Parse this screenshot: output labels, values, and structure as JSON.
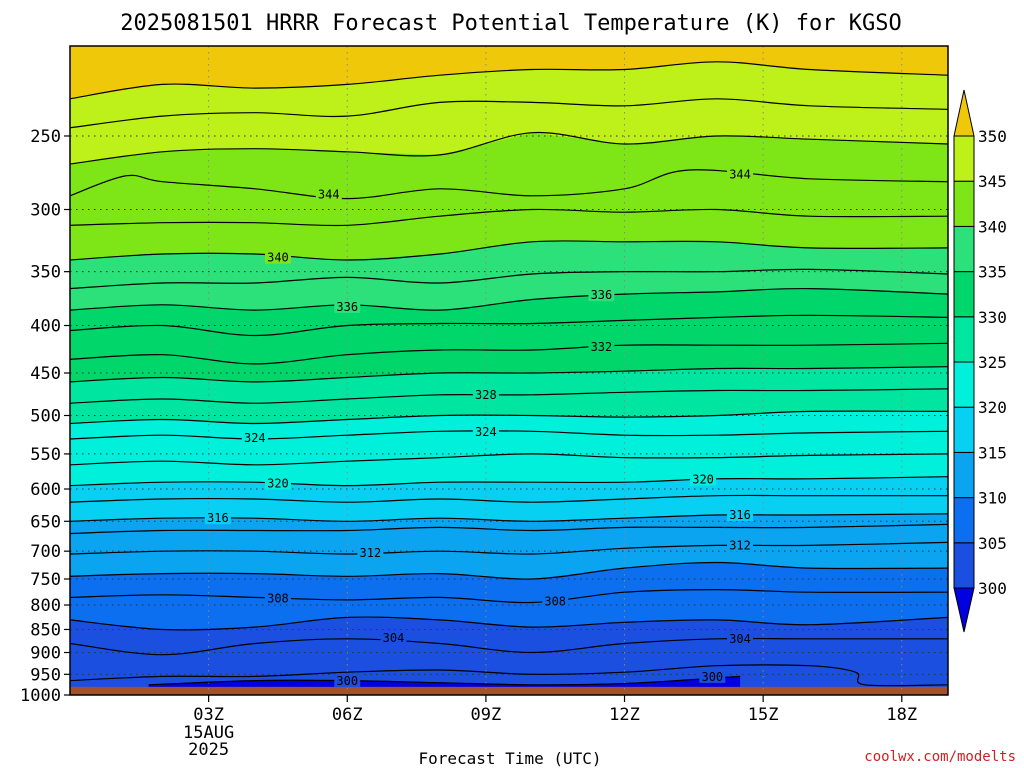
{
  "title": "2025081501 HRRR Forecast Potential Temperature (K) for KGSO",
  "xlabel": "Forecast Time (UTC)",
  "watermark": "coolwx.com/modelts",
  "chart_data": {
    "type": "contour",
    "title": "2025081501 HRRR Forecast Potential Temperature (K) for KGSO",
    "xlabel": "Forecast Time (UTC)",
    "ylabel": "",
    "x_ticks": [
      {
        "label": "03Z",
        "sub": [
          "15AUG",
          "2025"
        ]
      },
      {
        "label": "06Z",
        "sub": []
      },
      {
        "label": "09Z",
        "sub": []
      },
      {
        "label": "12Z",
        "sub": []
      },
      {
        "label": "15Z",
        "sub": []
      },
      {
        "label": "18Z",
        "sub": []
      }
    ],
    "x_tick_hours": [
      3,
      6,
      9,
      12,
      15,
      18
    ],
    "xlim": [
      0,
      19
    ],
    "y_ticks": [
      250,
      300,
      350,
      400,
      450,
      500,
      550,
      600,
      650,
      700,
      750,
      800,
      850,
      900,
      950,
      1000
    ],
    "ylim": [
      200,
      1000
    ],
    "y_scale": "log",
    "grid": true,
    "colorbar": {
      "levels": [
        300,
        305,
        310,
        315,
        320,
        325,
        330,
        335,
        340,
        345,
        350
      ],
      "colors": [
        "#1a4fe0",
        "#0b6ff0",
        "#0aa4f0",
        "#08d0f2",
        "#00f0dc",
        "#00e6a0",
        "#00d66a",
        "#2ce07a",
        "#7ee616",
        "#bef01a",
        "#f0f000",
        "#f0c80a"
      ],
      "under_color": "#0000e0",
      "over_color": "#f0c80a"
    },
    "surface_color": "#a0522d",
    "surface_top_hpa": 980,
    "contour_interval": 2,
    "series": [
      {
        "theta": 300,
        "x": [
          1.7,
          4,
          6,
          8,
          10,
          12,
          14.5
        ],
        "p": [
          975,
          965,
          965,
          970,
          975,
          972,
          955
        ]
      },
      {
        "theta": 302,
        "x": [
          0,
          2,
          4,
          6,
          8,
          10,
          12,
          14,
          16,
          17,
          17.2,
          19
        ],
        "p": [
          965,
          955,
          955,
          945,
          940,
          950,
          945,
          930,
          930,
          945,
          975,
          975
        ]
      },
      {
        "theta": 304,
        "x": [
          0,
          2,
          4,
          6,
          8,
          10,
          12,
          14,
          16,
          19
        ],
        "p": [
          880,
          905,
          880,
          870,
          880,
          900,
          880,
          870,
          870,
          870
        ]
      },
      {
        "theta": 306,
        "x": [
          0,
          2,
          4,
          6,
          8,
          10,
          12,
          14,
          16,
          19
        ],
        "p": [
          830,
          850,
          845,
          825,
          830,
          845,
          835,
          830,
          840,
          825
        ]
      },
      {
        "theta": 308,
        "x": [
          0,
          2,
          4,
          6,
          8,
          10,
          12,
          14,
          16,
          19
        ],
        "p": [
          785,
          780,
          785,
          790,
          785,
          795,
          775,
          770,
          775,
          775
        ]
      },
      {
        "theta": 310,
        "x": [
          0,
          2,
          4,
          6,
          8,
          10,
          12,
          14,
          16,
          19
        ],
        "p": [
          745,
          740,
          740,
          745,
          740,
          750,
          730,
          720,
          730,
          730
        ]
      },
      {
        "theta": 312,
        "x": [
          0,
          2,
          4,
          6,
          8,
          10,
          12,
          14,
          16,
          19
        ],
        "p": [
          705,
          700,
          700,
          705,
          700,
          705,
          695,
          690,
          690,
          685
        ]
      },
      {
        "theta": 314,
        "x": [
          0,
          2,
          4,
          6,
          8,
          10,
          12,
          14,
          16,
          19
        ],
        "p": [
          670,
          665,
          665,
          665,
          660,
          665,
          660,
          660,
          660,
          655
        ]
      },
      {
        "theta": 316,
        "x": [
          0,
          2,
          4,
          6,
          8,
          10,
          12,
          14,
          16,
          19
        ],
        "p": [
          650,
          645,
          645,
          650,
          645,
          650,
          645,
          640,
          640,
          638
        ]
      },
      {
        "theta": 318,
        "x": [
          0,
          2,
          4,
          6,
          8,
          10,
          12,
          14,
          16,
          19
        ],
        "p": [
          620,
          615,
          615,
          620,
          615,
          620,
          615,
          610,
          610,
          610
        ]
      },
      {
        "theta": 320,
        "x": [
          0,
          2,
          4,
          6,
          8,
          10,
          12,
          14,
          16,
          19
        ],
        "p": [
          595,
          590,
          590,
          595,
          590,
          590,
          590,
          585,
          585,
          582
        ]
      },
      {
        "theta": 322,
        "x": [
          0,
          2,
          4,
          6,
          8,
          10,
          12,
          14,
          16,
          19
        ],
        "p": [
          565,
          560,
          565,
          560,
          555,
          550,
          555,
          555,
          552,
          550
        ]
      },
      {
        "theta": 324,
        "x": [
          0,
          2,
          4,
          6,
          8,
          10,
          12,
          14,
          16,
          19
        ],
        "p": [
          530,
          525,
          530,
          525,
          520,
          520,
          525,
          525,
          522,
          520
        ]
      },
      {
        "theta": 326,
        "x": [
          0,
          2,
          4,
          6,
          8,
          10,
          12,
          14,
          16,
          19
        ],
        "p": [
          510,
          505,
          510,
          505,
          500,
          500,
          502,
          500,
          495,
          495
        ]
      },
      {
        "theta": 328,
        "x": [
          0,
          2,
          4,
          6,
          8,
          10,
          12,
          14,
          16,
          19
        ],
        "p": [
          485,
          480,
          485,
          480,
          475,
          475,
          472,
          470,
          470,
          468
        ]
      },
      {
        "theta": 330,
        "x": [
          0,
          2,
          4,
          6,
          8,
          10,
          12,
          14,
          16,
          19
        ],
        "p": [
          460,
          455,
          460,
          455,
          450,
          450,
          448,
          445,
          445,
          443
        ]
      },
      {
        "theta": 332,
        "x": [
          0,
          2,
          4,
          6,
          8,
          10,
          12,
          14,
          16,
          19
        ],
        "p": [
          435,
          430,
          440,
          430,
          425,
          425,
          420,
          420,
          420,
          418
        ]
      },
      {
        "theta": 334,
        "x": [
          0,
          2,
          4,
          6,
          8,
          10,
          12,
          14,
          16,
          19
        ],
        "p": [
          405,
          400,
          410,
          400,
          398,
          398,
          395,
          392,
          390,
          392
        ]
      },
      {
        "theta": 336,
        "x": [
          0,
          2,
          4,
          6,
          8,
          10,
          12,
          14,
          16,
          19
        ],
        "p": [
          385,
          380,
          385,
          380,
          385,
          375,
          370,
          368,
          365,
          370
        ]
      },
      {
        "theta": 338,
        "x": [
          0,
          2,
          4,
          6,
          8,
          10,
          12,
          14,
          16,
          19
        ],
        "p": [
          365,
          360,
          360,
          355,
          360,
          352,
          350,
          350,
          348,
          352
        ]
      },
      {
        "theta": 340,
        "x": [
          0,
          2,
          4,
          6,
          8,
          10,
          12,
          14,
          16,
          19
        ],
        "p": [
          340,
          335,
          335,
          340,
          335,
          325,
          325,
          325,
          330,
          330
        ]
      },
      {
        "theta": 342,
        "x": [
          0,
          2,
          4,
          6,
          8,
          10,
          12,
          14,
          16,
          19
        ],
        "p": [
          312,
          310,
          310,
          312,
          305,
          300,
          302,
          300,
          305,
          305
        ]
      },
      {
        "theta": 344,
        "x": [
          0,
          1.2,
          2,
          4,
          6,
          8,
          10,
          12,
          13.4,
          16,
          19
        ],
        "p": [
          290,
          276,
          280,
          285,
          292,
          285,
          290,
          285,
          272,
          278,
          280
        ]
      },
      {
        "theta": 346,
        "x": [
          0,
          2,
          4,
          6,
          8,
          10,
          12,
          14,
          16,
          19
        ],
        "p": [
          268,
          260,
          258,
          260,
          262,
          248,
          255,
          250,
          252,
          255
        ]
      },
      {
        "theta": 348,
        "x": [
          0,
          2,
          4,
          6,
          8,
          10,
          12,
          14,
          16,
          19
        ],
        "p": [
          245,
          238,
          236,
          238,
          230,
          230,
          232,
          228,
          232,
          234
        ]
      },
      {
        "theta": 350,
        "x": [
          0,
          2,
          4,
          6,
          8,
          10,
          12,
          14,
          16,
          19
        ],
        "p": [
          228,
          220,
          222,
          220,
          215,
          212,
          212,
          208,
          212,
          215
        ]
      }
    ],
    "contour_labels": [
      {
        "text": "300",
        "x": 6.0,
        "p": 966
      },
      {
        "text": "300",
        "x": 13.9,
        "p": 956
      },
      {
        "text": "304",
        "x": 7.0,
        "p": 868
      },
      {
        "text": "304",
        "x": 14.5,
        "p": 870
      },
      {
        "text": "308",
        "x": 4.5,
        "p": 787
      },
      {
        "text": "308",
        "x": 10.5,
        "p": 793
      },
      {
        "text": "312",
        "x": 6.5,
        "p": 703
      },
      {
        "text": "312",
        "x": 14.5,
        "p": 690
      },
      {
        "text": "316",
        "x": 3.2,
        "p": 645
      },
      {
        "text": "316",
        "x": 14.5,
        "p": 640
      },
      {
        "text": "320",
        "x": 4.5,
        "p": 592
      },
      {
        "text": "320",
        "x": 13.7,
        "p": 586
      },
      {
        "text": "324",
        "x": 4.0,
        "p": 529
      },
      {
        "text": "324",
        "x": 9.0,
        "p": 521
      },
      {
        "text": "328",
        "x": 9.0,
        "p": 475
      },
      {
        "text": "332",
        "x": 11.5,
        "p": 422
      },
      {
        "text": "336",
        "x": 6.0,
        "p": 382
      },
      {
        "text": "336",
        "x": 11.5,
        "p": 371
      },
      {
        "text": "340",
        "x": 4.5,
        "p": 338
      },
      {
        "text": "344",
        "x": 5.6,
        "p": 289
      },
      {
        "text": "344",
        "x": 14.5,
        "p": 275
      }
    ]
  }
}
